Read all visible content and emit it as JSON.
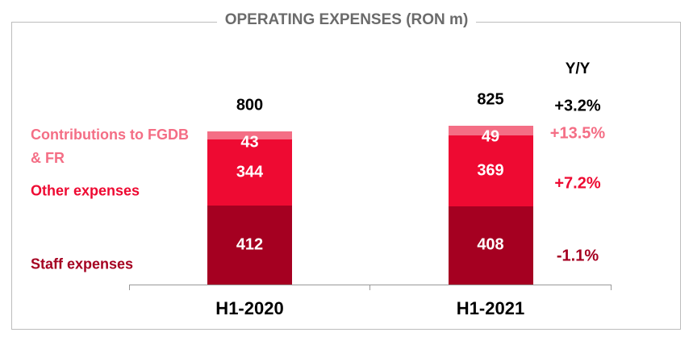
{
  "chart_data": {
    "type": "bar",
    "stacked": true,
    "title": "OPERATING EXPENSES (RON m)",
    "categories": [
      "H1-2020",
      "H1-2021"
    ],
    "series": [
      {
        "name": "Staff expenses",
        "color": "#a50021",
        "values": [
          412,
          408
        ],
        "yoy": {
          "value": -1.1,
          "label": "-1.1%"
        }
      },
      {
        "name": "Other expenses",
        "color": "#ee0a32",
        "values": [
          344,
          369
        ],
        "yoy": {
          "value": 7.2,
          "label": "+7.2%"
        }
      },
      {
        "name": "Contributions to FGDB & FR",
        "color": "#f46e85",
        "values": [
          43,
          49
        ],
        "yoy": {
          "value": 13.5,
          "label": "+13.5%"
        }
      }
    ],
    "totals": [
      800,
      825
    ],
    "yoy_title": "Y/Y",
    "yoy_total": {
      "value": 3.2,
      "label": "+3.2%"
    }
  }
}
